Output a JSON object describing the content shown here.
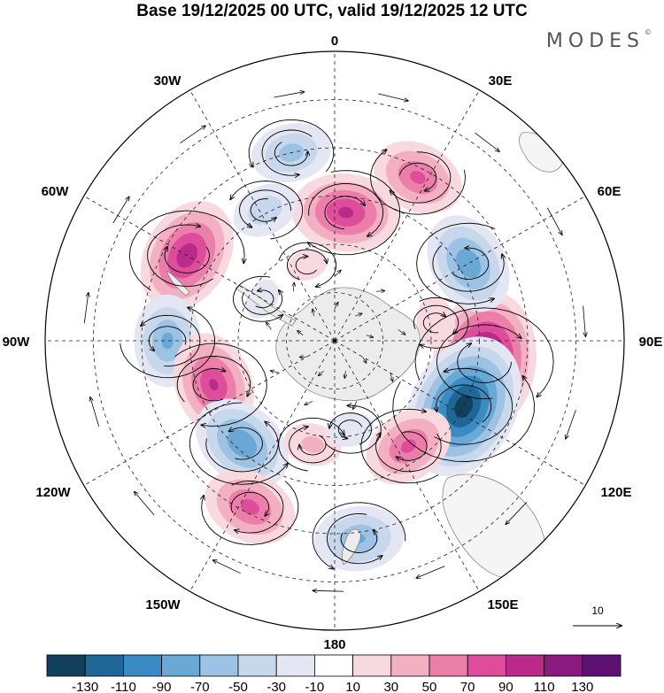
{
  "title": "Base 19/12/2025 00 UTC, valid 19/12/2025 12 UTC",
  "logo": "MODES",
  "logo_mark": "©",
  "map": {
    "projection": "south-polar-stereographic",
    "longitude_labels": [
      {
        "id": "0",
        "text": "0"
      },
      {
        "id": "30e",
        "text": "30E"
      },
      {
        "id": "60e",
        "text": "60E"
      },
      {
        "id": "90e",
        "text": "90E"
      },
      {
        "id": "120e",
        "text": "120E"
      },
      {
        "id": "150e",
        "text": "150E"
      },
      {
        "id": "180",
        "text": "180"
      },
      {
        "id": "150w",
        "text": "150W"
      },
      {
        "id": "120w",
        "text": "120W"
      },
      {
        "id": "90w",
        "text": "90W"
      },
      {
        "id": "60w",
        "text": "60W"
      },
      {
        "id": "30w",
        "text": "30W"
      }
    ],
    "vector_reference": "10"
  },
  "colorbar": {
    "labels": [
      "-130",
      "-110",
      "-90",
      "-70",
      "-50",
      "-30",
      "-10",
      "10",
      "30",
      "50",
      "70",
      "90",
      "110",
      "130"
    ],
    "colors": [
      "#12405c",
      "#1e6797",
      "#3a8bc3",
      "#6aa8d6",
      "#9cc3e3",
      "#c7d7ec",
      "#e4e6f3",
      "#ffffff",
      "#f9d9e0",
      "#f4b0c3",
      "#ec7fa9",
      "#de4d9b",
      "#b92a8a",
      "#8a1a80",
      "#5e1173"
    ]
  },
  "anomalies": [
    {
      "lat": -43,
      "lon": 98,
      "value": 140
    },
    {
      "lat": -45,
      "lon": 117,
      "value": -145
    },
    {
      "lat": -50,
      "lon": 5,
      "value": 95
    },
    {
      "lat": -42,
      "lon": 60,
      "value": -88
    },
    {
      "lat": -33,
      "lon": 27,
      "value": 75
    },
    {
      "lat": -30,
      "lon": -13,
      "value": -60
    },
    {
      "lat": -44,
      "lon": -28,
      "value": -45
    },
    {
      "lat": -37,
      "lon": -60,
      "value": 105
    },
    {
      "lat": -38,
      "lon": -90,
      "value": -75
    },
    {
      "lat": -50,
      "lon": -110,
      "value": 92
    },
    {
      "lat": -47,
      "lon": -138,
      "value": -90
    },
    {
      "lat": -32,
      "lon": -153,
      "value": 78
    },
    {
      "lat": -28,
      "lon": 173,
      "value": -72
    },
    {
      "lat": -50,
      "lon": 145,
      "value": 75
    },
    {
      "lat": -57,
      "lon": -168,
      "value": 35
    },
    {
      "lat": -62,
      "lon": 170,
      "value": -25
    },
    {
      "lat": -65,
      "lon": -20,
      "value": 20
    },
    {
      "lat": -58,
      "lon": 80,
      "value": 30
    },
    {
      "lat": -64,
      "lon": -60,
      "value": -20
    }
  ]
}
